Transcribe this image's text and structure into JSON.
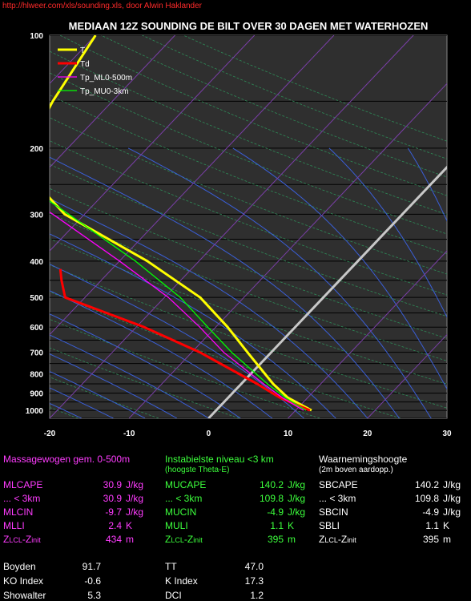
{
  "source": "http://hlweer.com/xls/sounding.xls, door Alwin Haklander",
  "chart_data": {
    "type": "line",
    "title": "MEDIAAN 12Z SOUNDING DE BILT OVER 30 DAGEN MET WATERHOZEN",
    "x_ticks": [
      "-20",
      "-10",
      "0",
      "10",
      "20",
      "30"
    ],
    "y_ticks": [
      {
        "p": 100,
        "label": "100"
      },
      {
        "p": 200,
        "label": "200"
      },
      {
        "p": 300,
        "label": "300"
      },
      {
        "p": 400,
        "label": "400"
      },
      {
        "p": 500,
        "label": "500"
      },
      {
        "p": 600,
        "label": "600"
      },
      {
        "p": 700,
        "label": "700"
      },
      {
        "p": 800,
        "label": "800"
      },
      {
        "p": 900,
        "label": "900"
      },
      {
        "p": 1000,
        "label": "1000"
      }
    ],
    "xlim": [
      -20,
      30
    ],
    "ylim": [
      1050,
      100
    ],
    "y_scale": "log",
    "legend_position": "top-left",
    "series": [
      {
        "name": "T",
        "color": "#ffff00",
        "points": [
          [
            1000,
            12.0
          ],
          [
            925,
            7.5
          ],
          [
            850,
            4.0
          ],
          [
            700,
            -3.0
          ],
          [
            600,
            -8.5
          ],
          [
            500,
            -15.5
          ],
          [
            400,
            -26.5
          ],
          [
            300,
            -42.5
          ],
          [
            250,
            -49.5
          ],
          [
            200,
            -55.0
          ],
          [
            150,
            -57.5
          ],
          [
            100,
            -60.0
          ]
        ]
      },
      {
        "name": "Td",
        "color": "#ff0000",
        "points": [
          [
            1000,
            11.8
          ],
          [
            925,
            6.5
          ],
          [
            850,
            2.0
          ],
          [
            700,
            -9.0
          ],
          [
            600,
            -19.0
          ],
          [
            500,
            -32.5
          ],
          [
            450,
            -35.0
          ],
          [
            420,
            -36.5
          ]
        ]
      },
      {
        "name": "Tp_ML0-500m",
        "color": "#ff00ff",
        "points": [
          [
            1000,
            11.0
          ],
          [
            925,
            6.8
          ],
          [
            850,
            2.8
          ],
          [
            700,
            -6.0
          ],
          [
            600,
            -12.0
          ],
          [
            500,
            -19.5
          ],
          [
            400,
            -30.0
          ],
          [
            300,
            -44.0
          ],
          [
            200,
            -65.0
          ]
        ]
      },
      {
        "name": "Tp_MU0-3km",
        "color": "#00ff00",
        "points": [
          [
            1000,
            11.3
          ],
          [
            925,
            7.2
          ],
          [
            850,
            3.3
          ],
          [
            700,
            -5.0
          ],
          [
            600,
            -11.0
          ],
          [
            500,
            -18.0
          ],
          [
            400,
            -28.0
          ],
          [
            300,
            -42.0
          ],
          [
            200,
            -62.0
          ]
        ]
      }
    ]
  },
  "stats": {
    "col1": {
      "header": "Massagewogen gem. 0-500m",
      "rows": [
        {
          "label": "MLCAPE",
          "value": "30.9",
          "unit": "J/kg"
        },
        {
          "label": "... < 3km",
          "value": "30.9",
          "unit": "J/kg"
        },
        {
          "label": "MLCIN",
          "value": "-9.7",
          "unit": "J/kg"
        },
        {
          "label": "MLLI",
          "value": "2.4",
          "unit": "K"
        },
        {
          "label": "ZLCL-Zinit",
          "value": "434",
          "unit": "m"
        }
      ]
    },
    "col2": {
      "header": "Instabielste niveau <3 km",
      "subheader": "(hoogste Theta-E)",
      "rows": [
        {
          "label": "MUCAPE",
          "value": "140.2",
          "unit": "J/kg"
        },
        {
          "label": "... < 3km",
          "value": "109.8",
          "unit": "J/kg"
        },
        {
          "label": "MUCIN",
          "value": "-4.9",
          "unit": "J/kg"
        },
        {
          "label": "MULI",
          "value": "1.1",
          "unit": "K"
        },
        {
          "label": "ZLCL-Zinit",
          "value": "395",
          "unit": "m"
        }
      ]
    },
    "col3": {
      "header": "Waarnemingshoogte",
      "subheader": "(2m boven aardopp.)",
      "rows": [
        {
          "label": "SBCAPE",
          "value": "140.2",
          "unit": "J/kg"
        },
        {
          "label": "... < 3km",
          "value": "109.8",
          "unit": "J/kg"
        },
        {
          "label": "SBCIN",
          "value": "-4.9",
          "unit": "J/kg"
        },
        {
          "label": "SBLI",
          "value": "1.1",
          "unit": "K"
        },
        {
          "label": "ZLCL-Zinit",
          "value": "395",
          "unit": "m"
        }
      ]
    },
    "indices_left": [
      {
        "label": "Boyden",
        "value": "91.7"
      },
      {
        "label": "KO Index",
        "value": "-0.6"
      },
      {
        "label": "Showalter",
        "value": "5.3"
      }
    ],
    "indices_right": [
      {
        "label": "TT",
        "value": "47.0"
      },
      {
        "label": "K Index",
        "value": "17.3"
      },
      {
        "label": "DCI",
        "value": "1.2"
      }
    ]
  }
}
